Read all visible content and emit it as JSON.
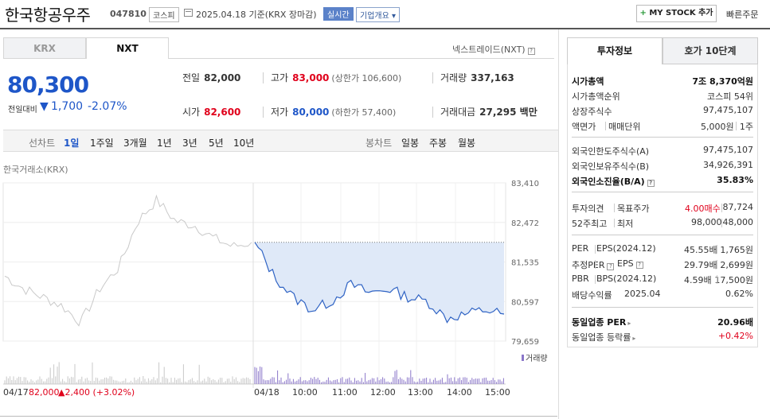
{
  "header": {
    "stock_name": "한국항공우주",
    "stock_code": "047810",
    "market": "코스피",
    "date_text": "2025.04.18 기준(KRX 장마감)",
    "realtime_label": "실시간",
    "corp_info_label": "기업개요 ▾",
    "mystock_label": "MY STOCK 추가",
    "fast_order_label": "빠른주문"
  },
  "market_tabs": [
    "KRX",
    "NXT"
  ],
  "active_market_tab": "NXT",
  "nxt_link": "넥스트레이드(NXT)",
  "quote": {
    "price": "80,300",
    "change_label": "전일대비",
    "change_arrow": "▼",
    "change_value": "1,700",
    "change_pct": "-2.07%",
    "prev_label": "전일",
    "prev_value": "82,000",
    "high_label": "고가",
    "high_value": "83,000",
    "high_limit": "(상한가 106,600)",
    "volume_label": "거래량",
    "volume_value": "337,163",
    "open_label": "시가",
    "open_value": "82,600",
    "low_label": "저가",
    "low_value": "80,000",
    "low_limit": "(하한가 57,400)",
    "amount_label": "거래대금",
    "amount_value": "27,295 백만"
  },
  "chart_toolbar": {
    "line_label": "선차트",
    "periods": [
      "1일",
      "1주일",
      "3개월",
      "1년",
      "3년",
      "5년",
      "10년"
    ],
    "active_period": "1일",
    "candle_label": "봉차트",
    "candles": [
      "일봉",
      "주봉",
      "월봉"
    ]
  },
  "chart_source": "한국거래소(KRX)",
  "chart_data": {
    "type": "line",
    "y_ticks": [
      "83,410",
      "82,472",
      "81,535",
      "80,597",
      "79,659"
    ],
    "ylim": [
      79659,
      83410
    ],
    "x_ticks": [
      "04/17",
      "04/18",
      "10:00",
      "11:00",
      "12:00",
      "13:00",
      "14:00",
      "15:00"
    ],
    "prev_close": 82000,
    "volume_label": "거래량",
    "footer_date": "04/17",
    "footer_close": "82,000",
    "footer_change": "▲2,400",
    "footer_pct": "(+3.02%)",
    "series": [
      {
        "x": [
          "04/17 09:00",
          "09:30",
          "10:00",
          "10:30",
          "11:00",
          "11:30",
          "12:00",
          "12:30",
          "13:00",
          "13:30",
          "14:00",
          "14:30",
          "15:00",
          "15:20"
        ],
        "values": [
          81200,
          80900,
          80700,
          80500,
          80100,
          80900,
          81400,
          82500,
          83000,
          82500,
          82400,
          82100,
          81900,
          82000
        ]
      },
      {
        "x": [
          "04/18 09:00",
          "09:30",
          "10:00",
          "10:30",
          "11:00",
          "11:30",
          "12:00",
          "12:30",
          "13:00",
          "13:30",
          "14:00",
          "14:30",
          "15:00",
          "15:20"
        ],
        "values": [
          82000,
          81200,
          80700,
          80400,
          80600,
          81000,
          80800,
          80900,
          80700,
          80600,
          80200,
          80300,
          80400,
          80300
        ]
      }
    ]
  },
  "right_tabs": [
    "투자정보",
    "호가 10단계"
  ],
  "invest_info": {
    "market_cap_label": "시가총액",
    "market_cap_value": "7조 8,370억원",
    "cap_rank_label": "시가총액순위",
    "cap_rank_value": "코스피 54위",
    "shares_label": "상장주식수",
    "shares_value": "97,475,107",
    "par_label": "액면가",
    "lot_label": "매매단위",
    "par_value": "5,000원",
    "lot_value": "1주",
    "foreign_limit_label": "외국인한도주식수(A)",
    "foreign_limit_value": "97,475,107",
    "foreign_hold_label": "외국인보유주식수(B)",
    "foreign_hold_value": "34,926,391",
    "foreign_ratio_label": "외국인소진율(B/A)",
    "foreign_ratio_value": "35.83%",
    "opinion_label": "투자의견",
    "target_label": "목표주가",
    "opinion_value": "4.00매수",
    "target_value": "87,724",
    "w52_high_label": "52주최고",
    "w52_low_label": "최저",
    "w52_high_value": "98,000",
    "w52_low_value": "48,000",
    "per_label": "PER",
    "eps_label": "EPS(2024.12)",
    "per_value": "45.55배",
    "eps_value": "1,765원",
    "est_per_label": "추정PER",
    "est_eps_label": "EPS",
    "est_per_value": "29.79배",
    "est_eps_value": "2,699원",
    "pbr_label": "PBR",
    "bps_label": "BPS(2024.12)",
    "pbr_value": "4.59배",
    "bps_value": "17,500원",
    "div_label": "배당수익률",
    "div_date": "2025.04",
    "div_value": "0.62%",
    "ind_per_label": "동일업종 PER",
    "ind_per_value": "20.96배",
    "ind_rate_label": "동일업종 등락률",
    "ind_rate_value": "+0.42%"
  }
}
